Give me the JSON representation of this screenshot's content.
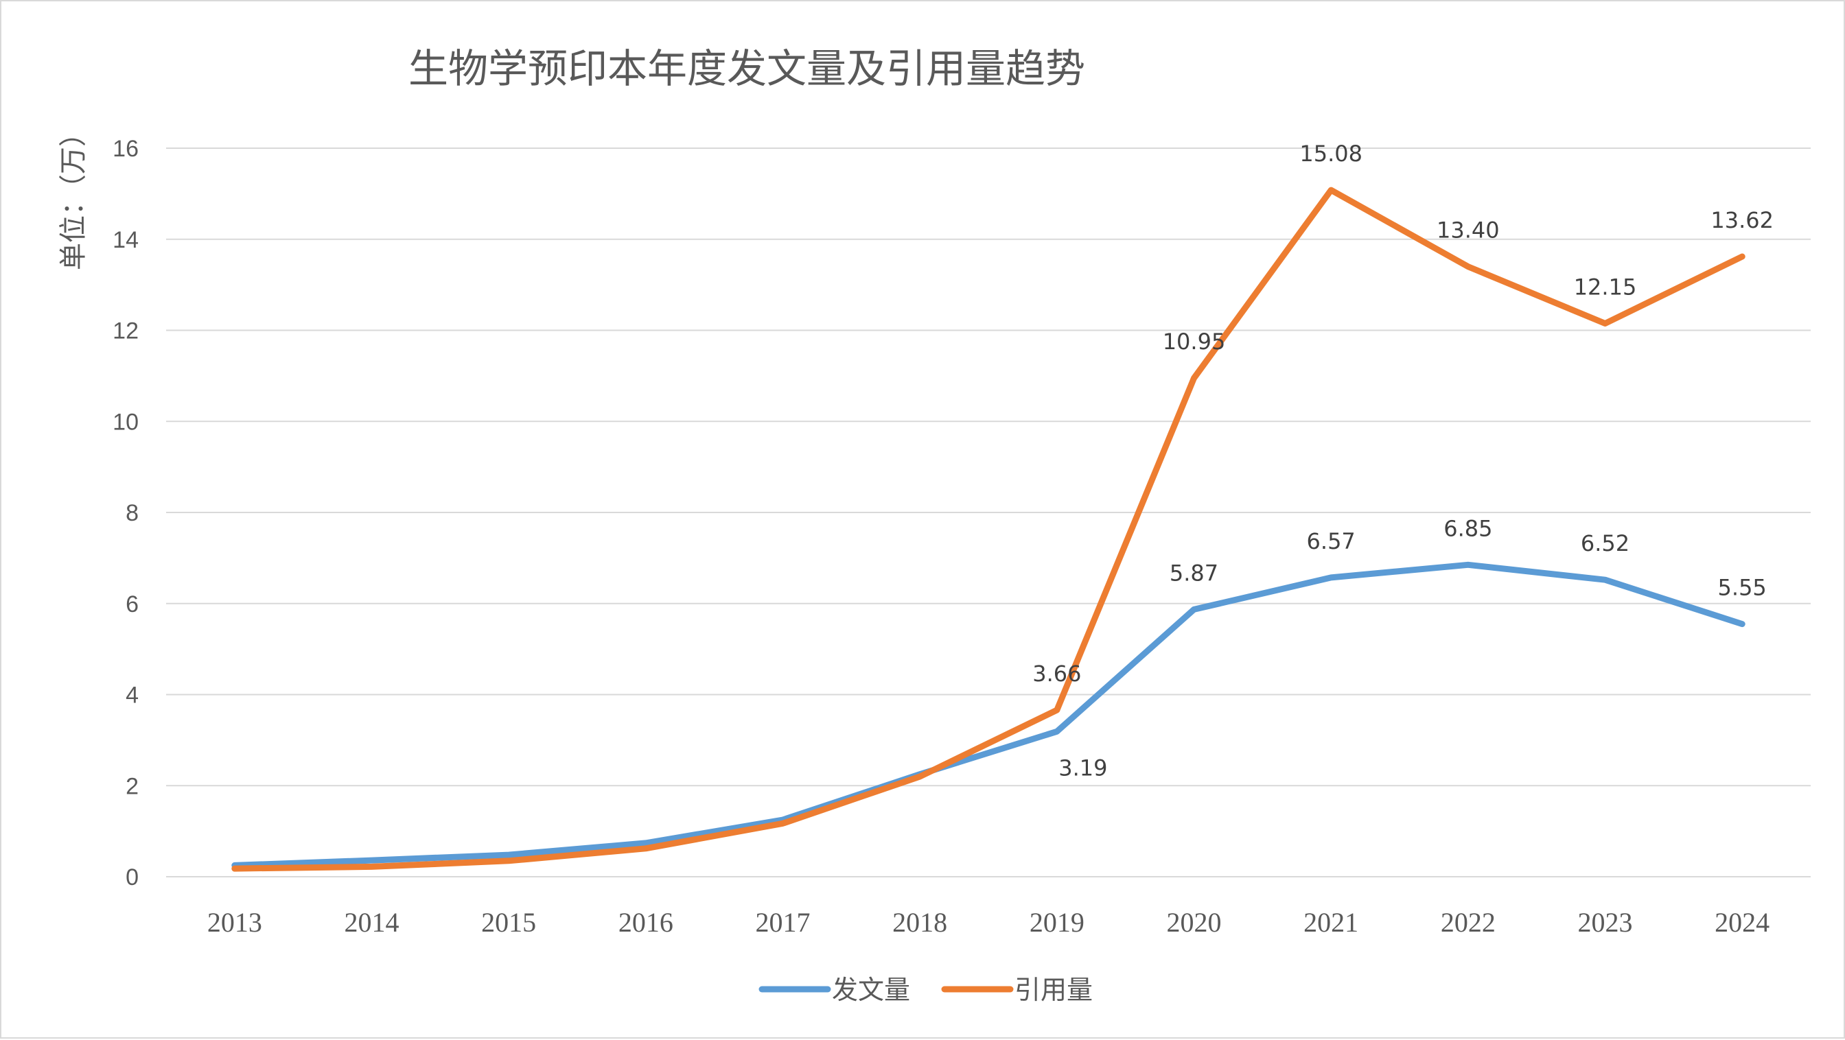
{
  "chart_data": {
    "type": "line",
    "title": "生物学预印本年度发文量及引用量趋势",
    "xlabel": "",
    "ylabel": "单位：（万）",
    "ylim": [
      0,
      16
    ],
    "yticks": [
      0,
      2,
      4,
      6,
      8,
      10,
      12,
      14,
      16
    ],
    "grid": true,
    "legend_position": "bottom",
    "categories": [
      "2013",
      "2014",
      "2015",
      "2016",
      "2017",
      "2018",
      "2019",
      "2020",
      "2021",
      "2022",
      "2023",
      "2024"
    ],
    "series": [
      {
        "name": "发文量",
        "color": "#5b9bd5",
        "values": [
          0.25,
          0.36,
          0.48,
          0.74,
          1.25,
          2.25,
          3.19,
          5.87,
          6.57,
          6.85,
          6.52,
          5.55
        ],
        "labels": [
          "",
          "",
          "",
          "",
          "",
          "",
          "3.19",
          "5.87",
          "6.57",
          "6.85",
          "6.52",
          "5.55"
        ]
      },
      {
        "name": "引用量",
        "color": "#ed7d31",
        "values": [
          0.18,
          0.22,
          0.35,
          0.62,
          1.17,
          2.2,
          3.66,
          10.95,
          15.08,
          13.4,
          12.15,
          13.62
        ],
        "labels": [
          "",
          "",
          "",
          "",
          "",
          "",
          "3.66",
          "10.95",
          "15.08",
          "13.40",
          "12.15",
          "13.62"
        ]
      }
    ]
  }
}
